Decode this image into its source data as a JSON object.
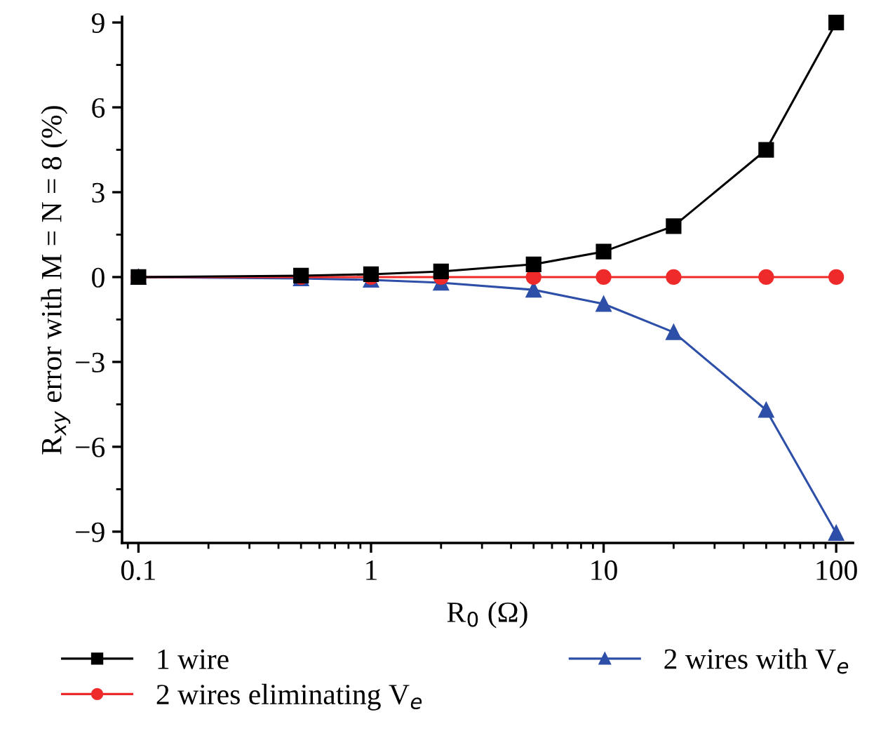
{
  "chart_data": {
    "type": "line",
    "xlabel": "R$_{0}$ (Ω)",
    "ylabel": "R$_{xy}$ error with M = N = 8 (%)",
    "x": [
      0.1,
      0.5,
      1,
      2,
      5,
      10,
      20,
      50,
      100
    ],
    "series": [
      {
        "name": "1 wire",
        "color": "#000000",
        "marker": "square",
        "values": [
          0,
          0.05,
          0.1,
          0.2,
          0.45,
          0.9,
          1.8,
          4.5,
          9.0
        ]
      },
      {
        "name": "2 wires eliminating V$_{e}$",
        "color": "#ee2a2a",
        "marker": "circle",
        "values": [
          0,
          0,
          0,
          0,
          0,
          0,
          0,
          0,
          0
        ]
      },
      {
        "name": "2 wires with V$_{e}$",
        "color": "#2e4fa8",
        "marker": "triangle",
        "values": [
          0,
          -0.05,
          -0.1,
          -0.2,
          -0.45,
          -0.95,
          -1.95,
          -4.7,
          -9.05
        ]
      }
    ],
    "log": "x",
    "xlim": [
      0.085,
      118
    ],
    "xticks": [
      0.1,
      1,
      10,
      100
    ],
    "ylim": [
      -9.4,
      9.2
    ],
    "yticks": [
      -9,
      -6,
      -3,
      0,
      3,
      6,
      9
    ],
    "grid": false,
    "legend": "bottom",
    "line_style": "solid"
  }
}
